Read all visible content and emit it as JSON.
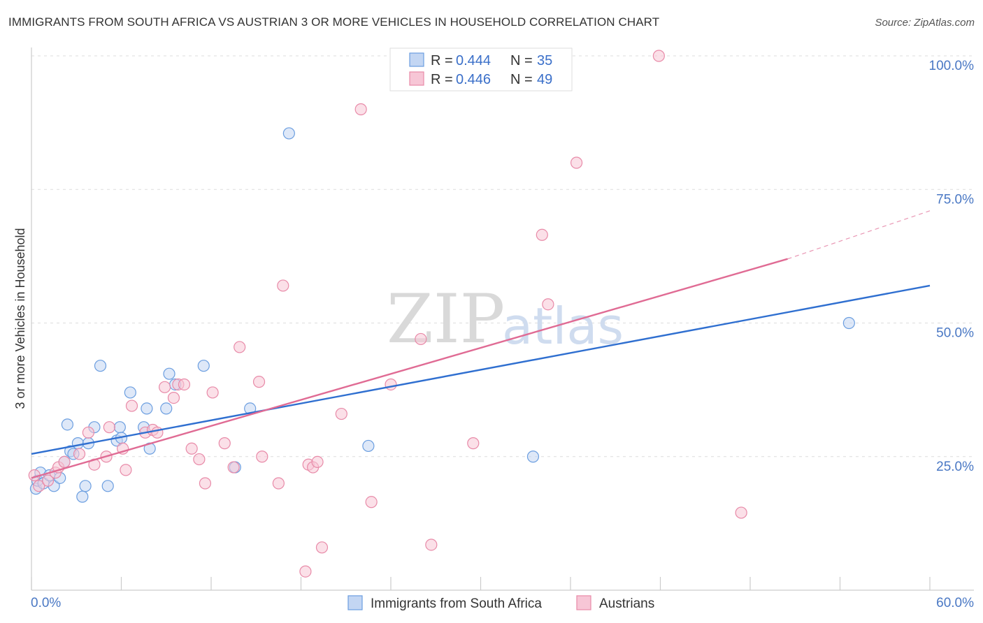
{
  "chart_data": {
    "type": "scatter",
    "title": "IMMIGRANTS FROM SOUTH AFRICA VS AUSTRIAN 3 OR MORE VEHICLES IN HOUSEHOLD CORRELATION CHART",
    "source": "Source: ZipAtlas.com",
    "xlabel": "",
    "ylabel": "3 or more Vehicles in Household",
    "xlim": [
      0,
      60
    ],
    "ylim": [
      0,
      100
    ],
    "x_tick_labels": [
      "0.0%",
      "60.0%"
    ],
    "y_ticks": [
      25,
      50,
      75,
      100
    ],
    "y_tick_labels": [
      "25.0%",
      "50.0%",
      "75.0%",
      "100.0%"
    ],
    "grid": true,
    "watermark": {
      "part1": "ZIP",
      "part2": "atlas"
    },
    "legend": {
      "position": "top-center",
      "rows": [
        {
          "r_label": "R =",
          "r_value": "0.444",
          "n_label": "N =",
          "n_value": "35"
        },
        {
          "r_label": "R =",
          "r_value": "0.446",
          "n_label": "N =",
          "n_value": "49"
        }
      ]
    },
    "series": [
      {
        "name": "Immigrants from South Africa",
        "color": "#6b9ee0",
        "fill": "#c3d6f3",
        "line_color": "#2f6fd0",
        "trend": {
          "x0": 0,
          "y0": 25.5,
          "x1": 60,
          "y1": 57
        },
        "points": [
          [
            0.3,
            19
          ],
          [
            0.4,
            20.5
          ],
          [
            0.6,
            22
          ],
          [
            0.8,
            20
          ],
          [
            1.2,
            21.5
          ],
          [
            1.5,
            19.5
          ],
          [
            1.9,
            21
          ],
          [
            2.2,
            24
          ],
          [
            2.4,
            31
          ],
          [
            2.6,
            26
          ],
          [
            2.8,
            25.5
          ],
          [
            3.1,
            27.5
          ],
          [
            3.4,
            17.5
          ],
          [
            3.6,
            19.5
          ],
          [
            3.8,
            27.5
          ],
          [
            4.2,
            30.5
          ],
          [
            4.6,
            42
          ],
          [
            5.1,
            19.5
          ],
          [
            5.7,
            28
          ],
          [
            5.9,
            30.5
          ],
          [
            6.0,
            28.5
          ],
          [
            6.6,
            37
          ],
          [
            7.5,
            30.5
          ],
          [
            7.7,
            34
          ],
          [
            7.9,
            26.5
          ],
          [
            9.0,
            34
          ],
          [
            9.2,
            40.5
          ],
          [
            9.6,
            38.5
          ],
          [
            11.5,
            42
          ],
          [
            13.6,
            23
          ],
          [
            14.6,
            34
          ],
          [
            17.2,
            85.5
          ],
          [
            22.5,
            27
          ],
          [
            33.5,
            25
          ],
          [
            54.6,
            50
          ]
        ]
      },
      {
        "name": "Austrians",
        "color": "#e88aa8",
        "fill": "#f7c6d6",
        "line_color": "#e06b94",
        "trend": {
          "x0": 0,
          "y0": 21,
          "x1": 50.5,
          "y1": 62
        },
        "trend_ext": {
          "x0": 50.5,
          "y0": 62,
          "x1": 60,
          "y1": 71
        },
        "points": [
          [
            0.2,
            21.5
          ],
          [
            0.5,
            19.5
          ],
          [
            1.1,
            20.5
          ],
          [
            1.6,
            22
          ],
          [
            1.8,
            23
          ],
          [
            2.2,
            24
          ],
          [
            3.2,
            25.5
          ],
          [
            3.8,
            29.5
          ],
          [
            4.2,
            23.5
          ],
          [
            5.0,
            25
          ],
          [
            5.2,
            30.5
          ],
          [
            6.1,
            26.5
          ],
          [
            6.3,
            22.5
          ],
          [
            6.7,
            34.5
          ],
          [
            7.6,
            29.5
          ],
          [
            8.1,
            30
          ],
          [
            8.4,
            29.5
          ],
          [
            8.9,
            38
          ],
          [
            9.5,
            36
          ],
          [
            9.8,
            38.5
          ],
          [
            10.2,
            38.5
          ],
          [
            10.7,
            26.5
          ],
          [
            11.2,
            24.5
          ],
          [
            11.6,
            20
          ],
          [
            12.1,
            37
          ],
          [
            12.9,
            27.5
          ],
          [
            13.5,
            23
          ],
          [
            13.9,
            45.5
          ],
          [
            15.2,
            39
          ],
          [
            15.4,
            25
          ],
          [
            16.5,
            20
          ],
          [
            16.8,
            57
          ],
          [
            18.3,
            3.5
          ],
          [
            18.5,
            23.5
          ],
          [
            18.8,
            23
          ],
          [
            19.1,
            24
          ],
          [
            19.4,
            8
          ],
          [
            20.7,
            33
          ],
          [
            22.0,
            90
          ],
          [
            22.7,
            16.5
          ],
          [
            24.0,
            38.5
          ],
          [
            26.0,
            47
          ],
          [
            26.7,
            8.5
          ],
          [
            29.5,
            27.5
          ],
          [
            34.1,
            66.5
          ],
          [
            34.5,
            53.5
          ],
          [
            36.4,
            80
          ],
          [
            41.9,
            100
          ],
          [
            47.4,
            14.5
          ]
        ]
      }
    ]
  }
}
